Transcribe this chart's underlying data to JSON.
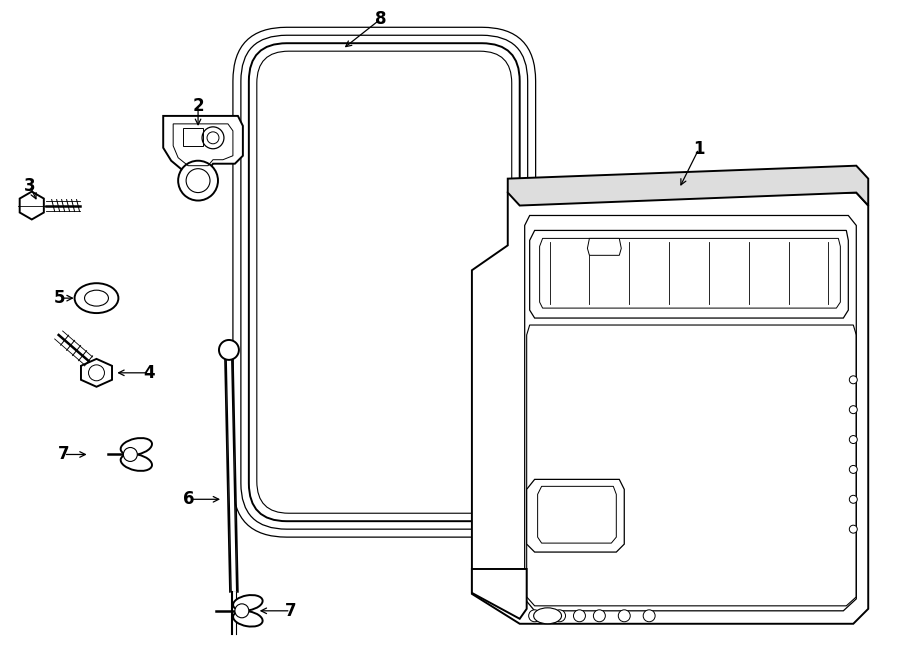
{
  "bg_color": "#ffffff",
  "line_color": "#000000",
  "label_fontsize": 12,
  "lw_main": 1.4,
  "lw_thin": 0.8
}
